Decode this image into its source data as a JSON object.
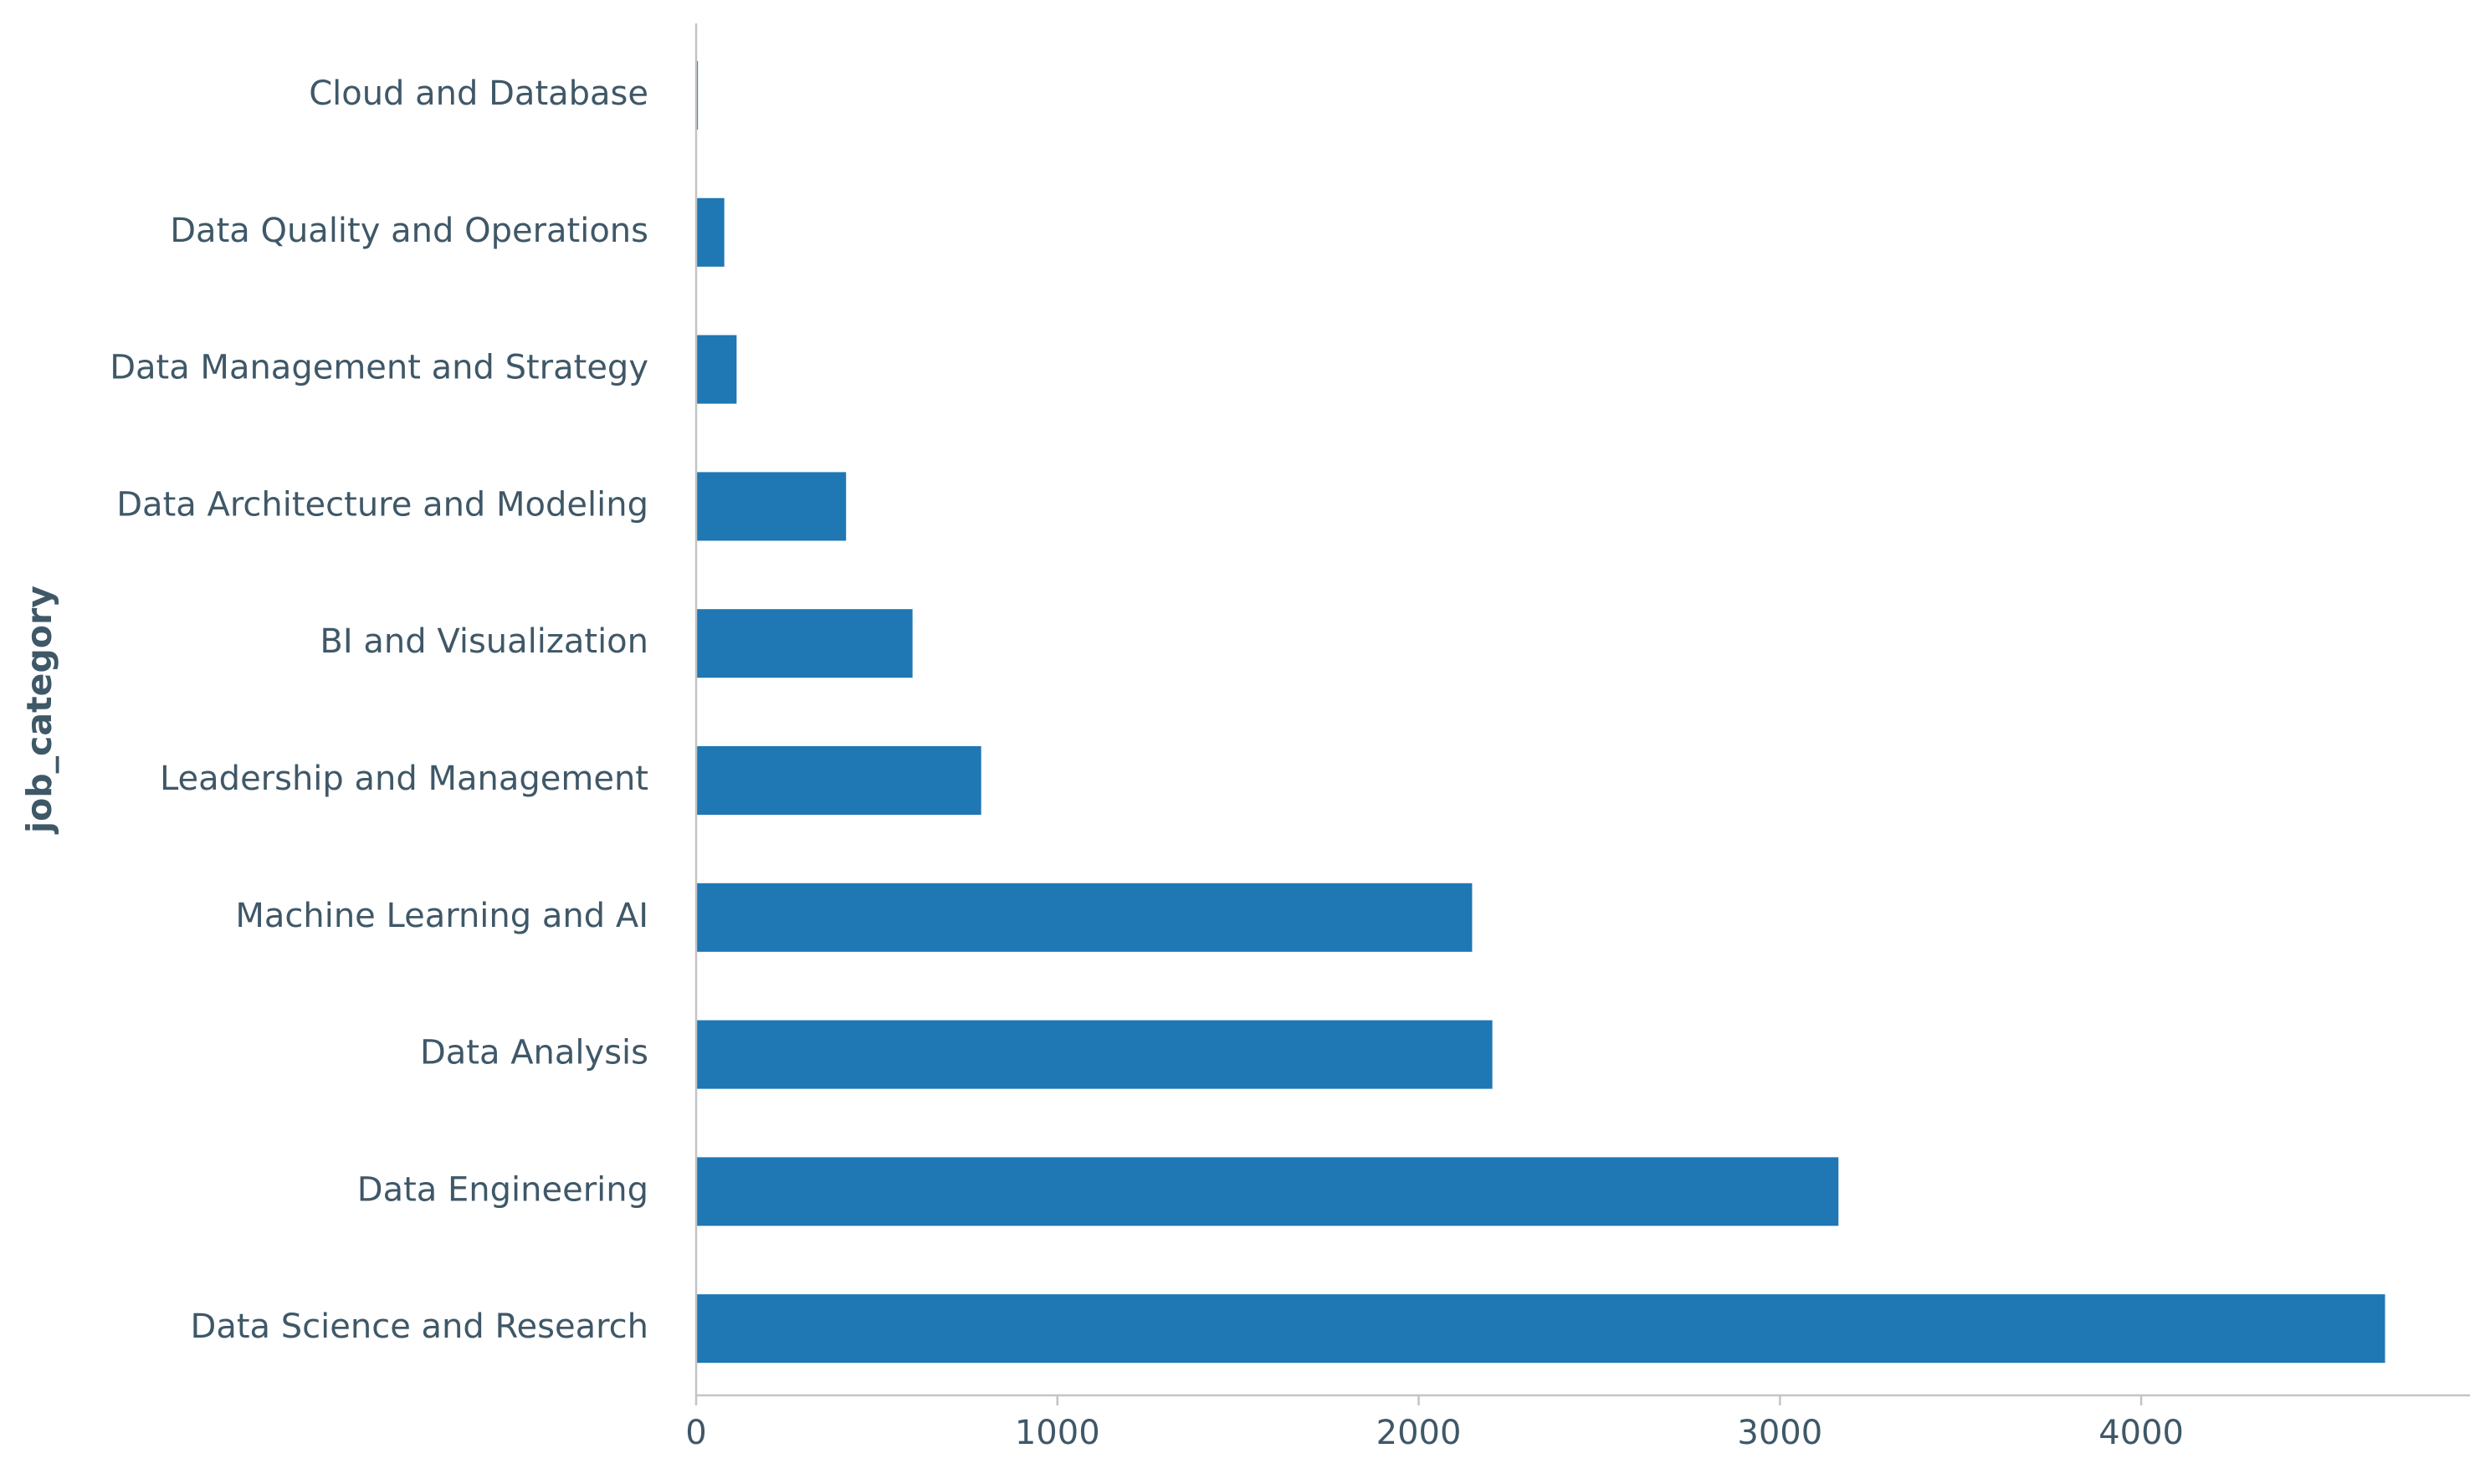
{
  "chart_data": {
    "type": "bar",
    "orientation": "horizontal",
    "title": "",
    "xlabel": "",
    "ylabel": "job_category",
    "categories": [
      "Cloud and Database",
      "Data Quality and Operations",
      "Data Management and Strategy",
      "Data Architecture and Modeling",
      "BI and Visualization",
      "Leadership and Management",
      "Machine Learning and AI",
      "Data Analysis",
      "Data Engineering",
      "Data Science and Research"
    ],
    "values": [
      5,
      78,
      112,
      415,
      599,
      789,
      2148,
      2204,
      3162,
      4675
    ],
    "x_ticks": [
      "0",
      "1000",
      "2000",
      "3000",
      "4000"
    ],
    "x_tick_values": [
      0,
      1000,
      2000,
      3000,
      4000
    ],
    "xlim": [
      0,
      4910
    ],
    "bar_color": "#1f77b4",
    "text_color": "#3f5868",
    "axis_color": "#c4c4c4",
    "grid": false,
    "legend": "none"
  }
}
